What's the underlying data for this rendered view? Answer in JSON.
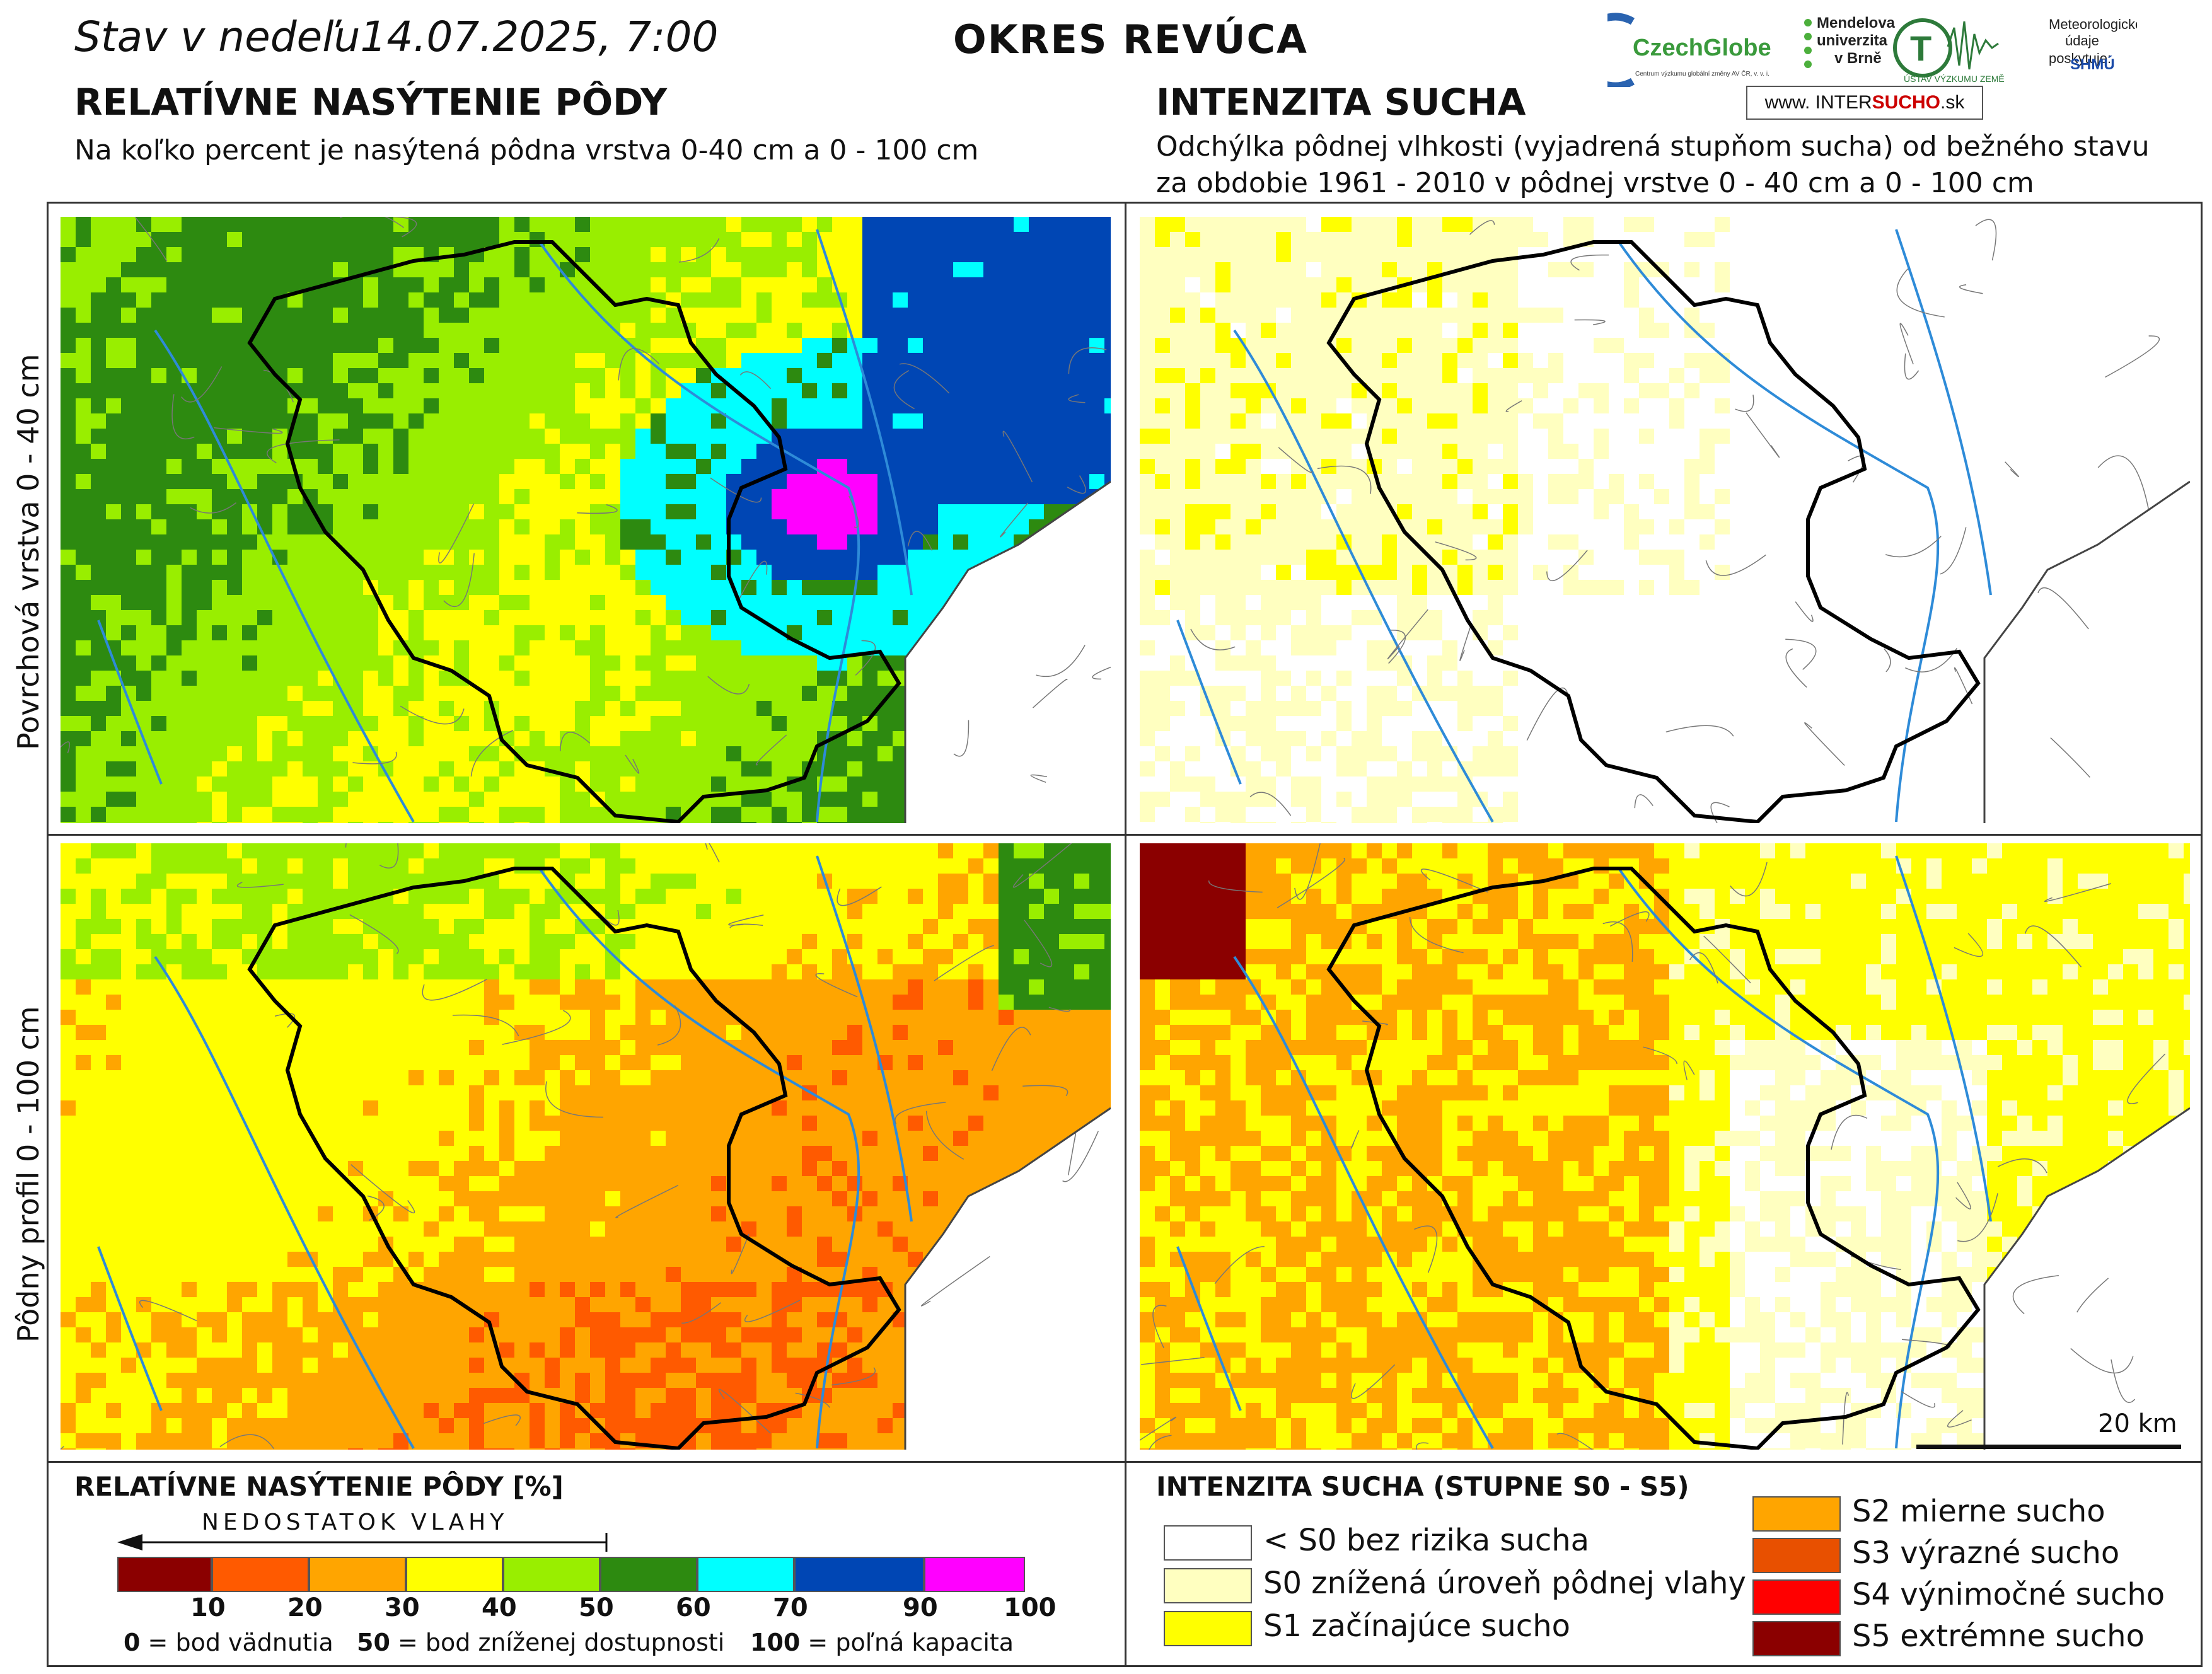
{
  "header": {
    "date_line": "Stav v nedeľu14.07.2025, 7:00",
    "district": "OKRES  REVÚCA"
  },
  "left_section": {
    "title": "RELATÍVNE NASÝTENIE PÔDY",
    "subtitle": "Na koľko percent je nasýtená pôdna vrstva 0-40 cm a 0 - 100 cm"
  },
  "right_section": {
    "title": "INTENZITA SUCHA",
    "subtitle_line1": "Odchýlka pôdnej vlhkosti (vyjadrená stupňom sucha) od bežného stavu",
    "subtitle_line2": "za obdobie 1961 - 2010 v pôdnej vrstve 0 - 40 cm a 0 - 100 cm"
  },
  "logos": {
    "czechglobe": "CzechGlobe",
    "czechglobe_sub": "Centrum výzkumu globální změny AV ČR, v. v. i.",
    "mendel_1": "Mendelova",
    "mendel_2": "univerzita",
    "mendel_3": "v Brně",
    "uvz": "ÚSTAV VÝZKUMU ZEMĚ",
    "meteo_1": "Meteorologické",
    "meteo_2": "údaje",
    "meteo_3": "poskytuje:",
    "shmu": "SHMÚ",
    "intersucho_prefix": "www.",
    "intersucho_inter": "INTER",
    "intersucho_sucho": "SUCHO",
    "intersucho_suffix": ".sk"
  },
  "row_labels": {
    "top": "Povrchová vrstva 0 - 40 cm",
    "bottom": "Pôdny profil 0 - 100 cm"
  },
  "scale_bar": {
    "label": "20 km"
  },
  "saturation_legend": {
    "title": "RELATÍVNE NASÝTENIE PÔDY [%]",
    "arrow_label": "NEDOSTATOK VLAHY",
    "bins": [
      {
        "color": "#8b0000"
      },
      {
        "color": "#ff5a00"
      },
      {
        "color": "#ffa500"
      },
      {
        "color": "#ffff00"
      },
      {
        "color": "#99ee00"
      },
      {
        "color": "#2d8a10"
      },
      {
        "color": "#00ffff"
      },
      {
        "color": "#0046b4"
      },
      {
        "color": "#ff00ff"
      }
    ],
    "tick_labels": [
      "10",
      "20",
      "30",
      "40",
      "50",
      "60",
      "70",
      "90",
      "100"
    ],
    "note_0_value": "0",
    "note_0_text": "= bod vädnutia",
    "note_50_value": "50",
    "note_50_text": "= bod zníženej dostupnosti",
    "note_100_value": "100",
    "note_100_text": "= poľná kapacita"
  },
  "drought_legend": {
    "title": "INTENZITA SUCHA (STUPNE S0 - S5)",
    "items": [
      {
        "label": "< S0 bez rizika sucha",
        "color": "#ffffff"
      },
      {
        "label": "S0 znížená úroveň pôdnej vlahy",
        "color": "#ffffc0"
      },
      {
        "label": "S1 začínajúce sucho",
        "color": "#ffff00"
      },
      {
        "label": "S2 mierne sucho",
        "color": "#ffa500"
      },
      {
        "label": "S3 výrazné sucho",
        "color": "#e85000"
      },
      {
        "label": "S4 výnimočné sucho",
        "color": "#ff0000"
      },
      {
        "label": "S5 extrémne sucho",
        "color": "#8b0000"
      }
    ]
  }
}
